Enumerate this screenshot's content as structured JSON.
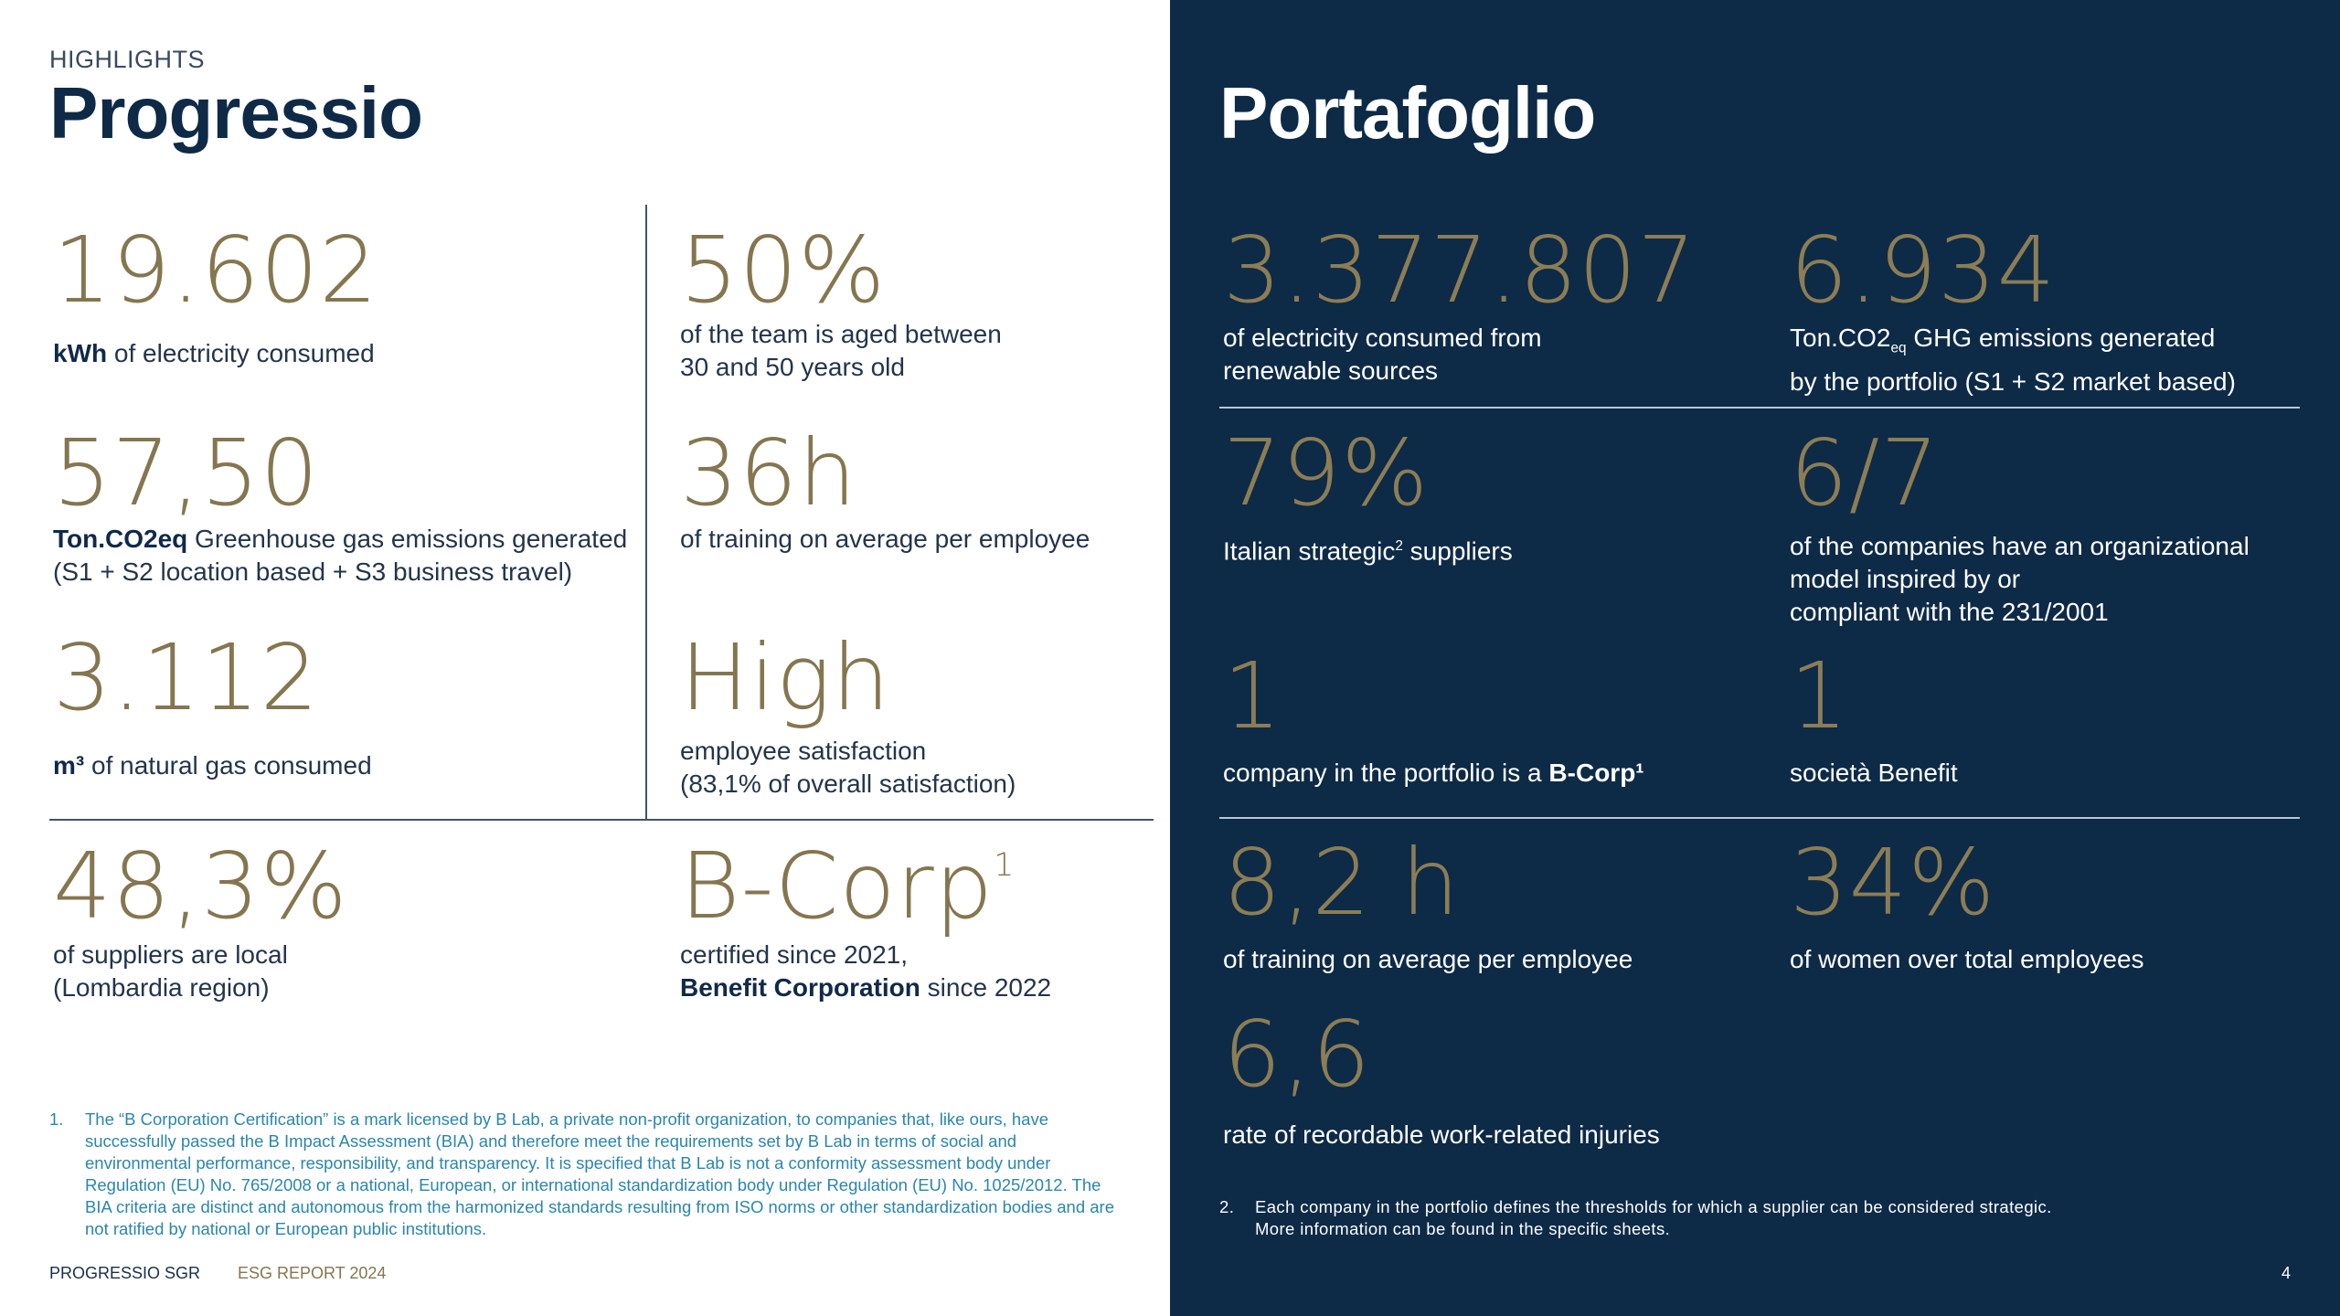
{
  "left": {
    "kicker": "HIGHLIGHTS",
    "title": "Progressio",
    "items": [
      {
        "value": "19.602",
        "bold": "kWh",
        "text": " of electricity consumed"
      },
      {
        "value": "50%",
        "line1": "of the team is aged between",
        "line2": "30 and 50 years old"
      },
      {
        "value": "57,50",
        "bold": "Ton.CO2eq",
        "text": " Greenhouse gas emissions generated",
        "line2": "(S1 + S2 location based + S3 business travel)"
      },
      {
        "value": "36h",
        "text": "of training on average per employee"
      },
      {
        "value": "3.112",
        "bold": "m³",
        "text": " of natural gas consumed"
      },
      {
        "value": "High",
        "line1": "employee satisfaction",
        "line2": "(83,1% of overall satisfaction)"
      },
      {
        "value": "48,3%",
        "line1": "of suppliers are local",
        "line2": "(Lombardia region)"
      },
      {
        "value": "B-Corp",
        "sup": "1",
        "line1": "certified since 2021,",
        "bold": "Benefit Corporation",
        "text": " since 2022"
      }
    ],
    "footnote": {
      "number": "1.",
      "text": "The “B Corporation Certification” is a mark licensed by B Lab, a private non-profit organization, to companies that, like ours, have successfully passed the B Impact Assessment (BIA) and therefore meet the requirements set by B Lab in terms of social and environmental performance, responsibility, and transparency. It is specified that B Lab is not a conformity assessment body under Regulation (EU) No. 765/2008 or a national, European, or international standardization body under Regulation (EU) No. 1025/2012. The BIA criteria are distinct and autonomous from the harmonized standards resulting from ISO norms or other standardization bodies and are not ratified by national or European public institutions."
    }
  },
  "right": {
    "title": "Portafoglio",
    "items": [
      {
        "value": "3.377.807",
        "line1": "of electricity consumed from",
        "line2": "renewable sources"
      },
      {
        "value": "6.934",
        "pre": "Ton.CO2",
        "sub": "eq",
        "text": " GHG emissions generated",
        "line2": "by the portfolio (S1 + S2 market based)"
      },
      {
        "value": "79%",
        "pre": "Italian strategic",
        "sup": "2",
        "text": " suppliers"
      },
      {
        "value": "6/7",
        "line1": "of the companies have an organizational",
        "line2": "model inspired by or",
        "line3": "compliant with the 231/2001"
      },
      {
        "value": "1",
        "text": "company in the portfolio is a ",
        "bold": "B-Corp¹"
      },
      {
        "value": "1",
        "text": "società Benefit"
      },
      {
        "value": "8,2 h",
        "text": "of training on average per employee"
      },
      {
        "value": "34%",
        "text": "of women over total employees"
      },
      {
        "value": "6,6",
        "text": "rate of recordable work-related injuries"
      }
    ],
    "footnote": {
      "number": "2.",
      "line1": "Each company in the portfolio defines the thresholds for which a supplier can be considered strategic.",
      "line2": "More information can be found in the specific sheets."
    }
  },
  "footer": {
    "company": "PROGRESSIO SGR",
    "report": "ESG REPORT 2024",
    "page": "4"
  },
  "colors": {
    "navy": "#0d2a47",
    "gold": "#857650",
    "footnote_blue": "#2a86ad"
  }
}
